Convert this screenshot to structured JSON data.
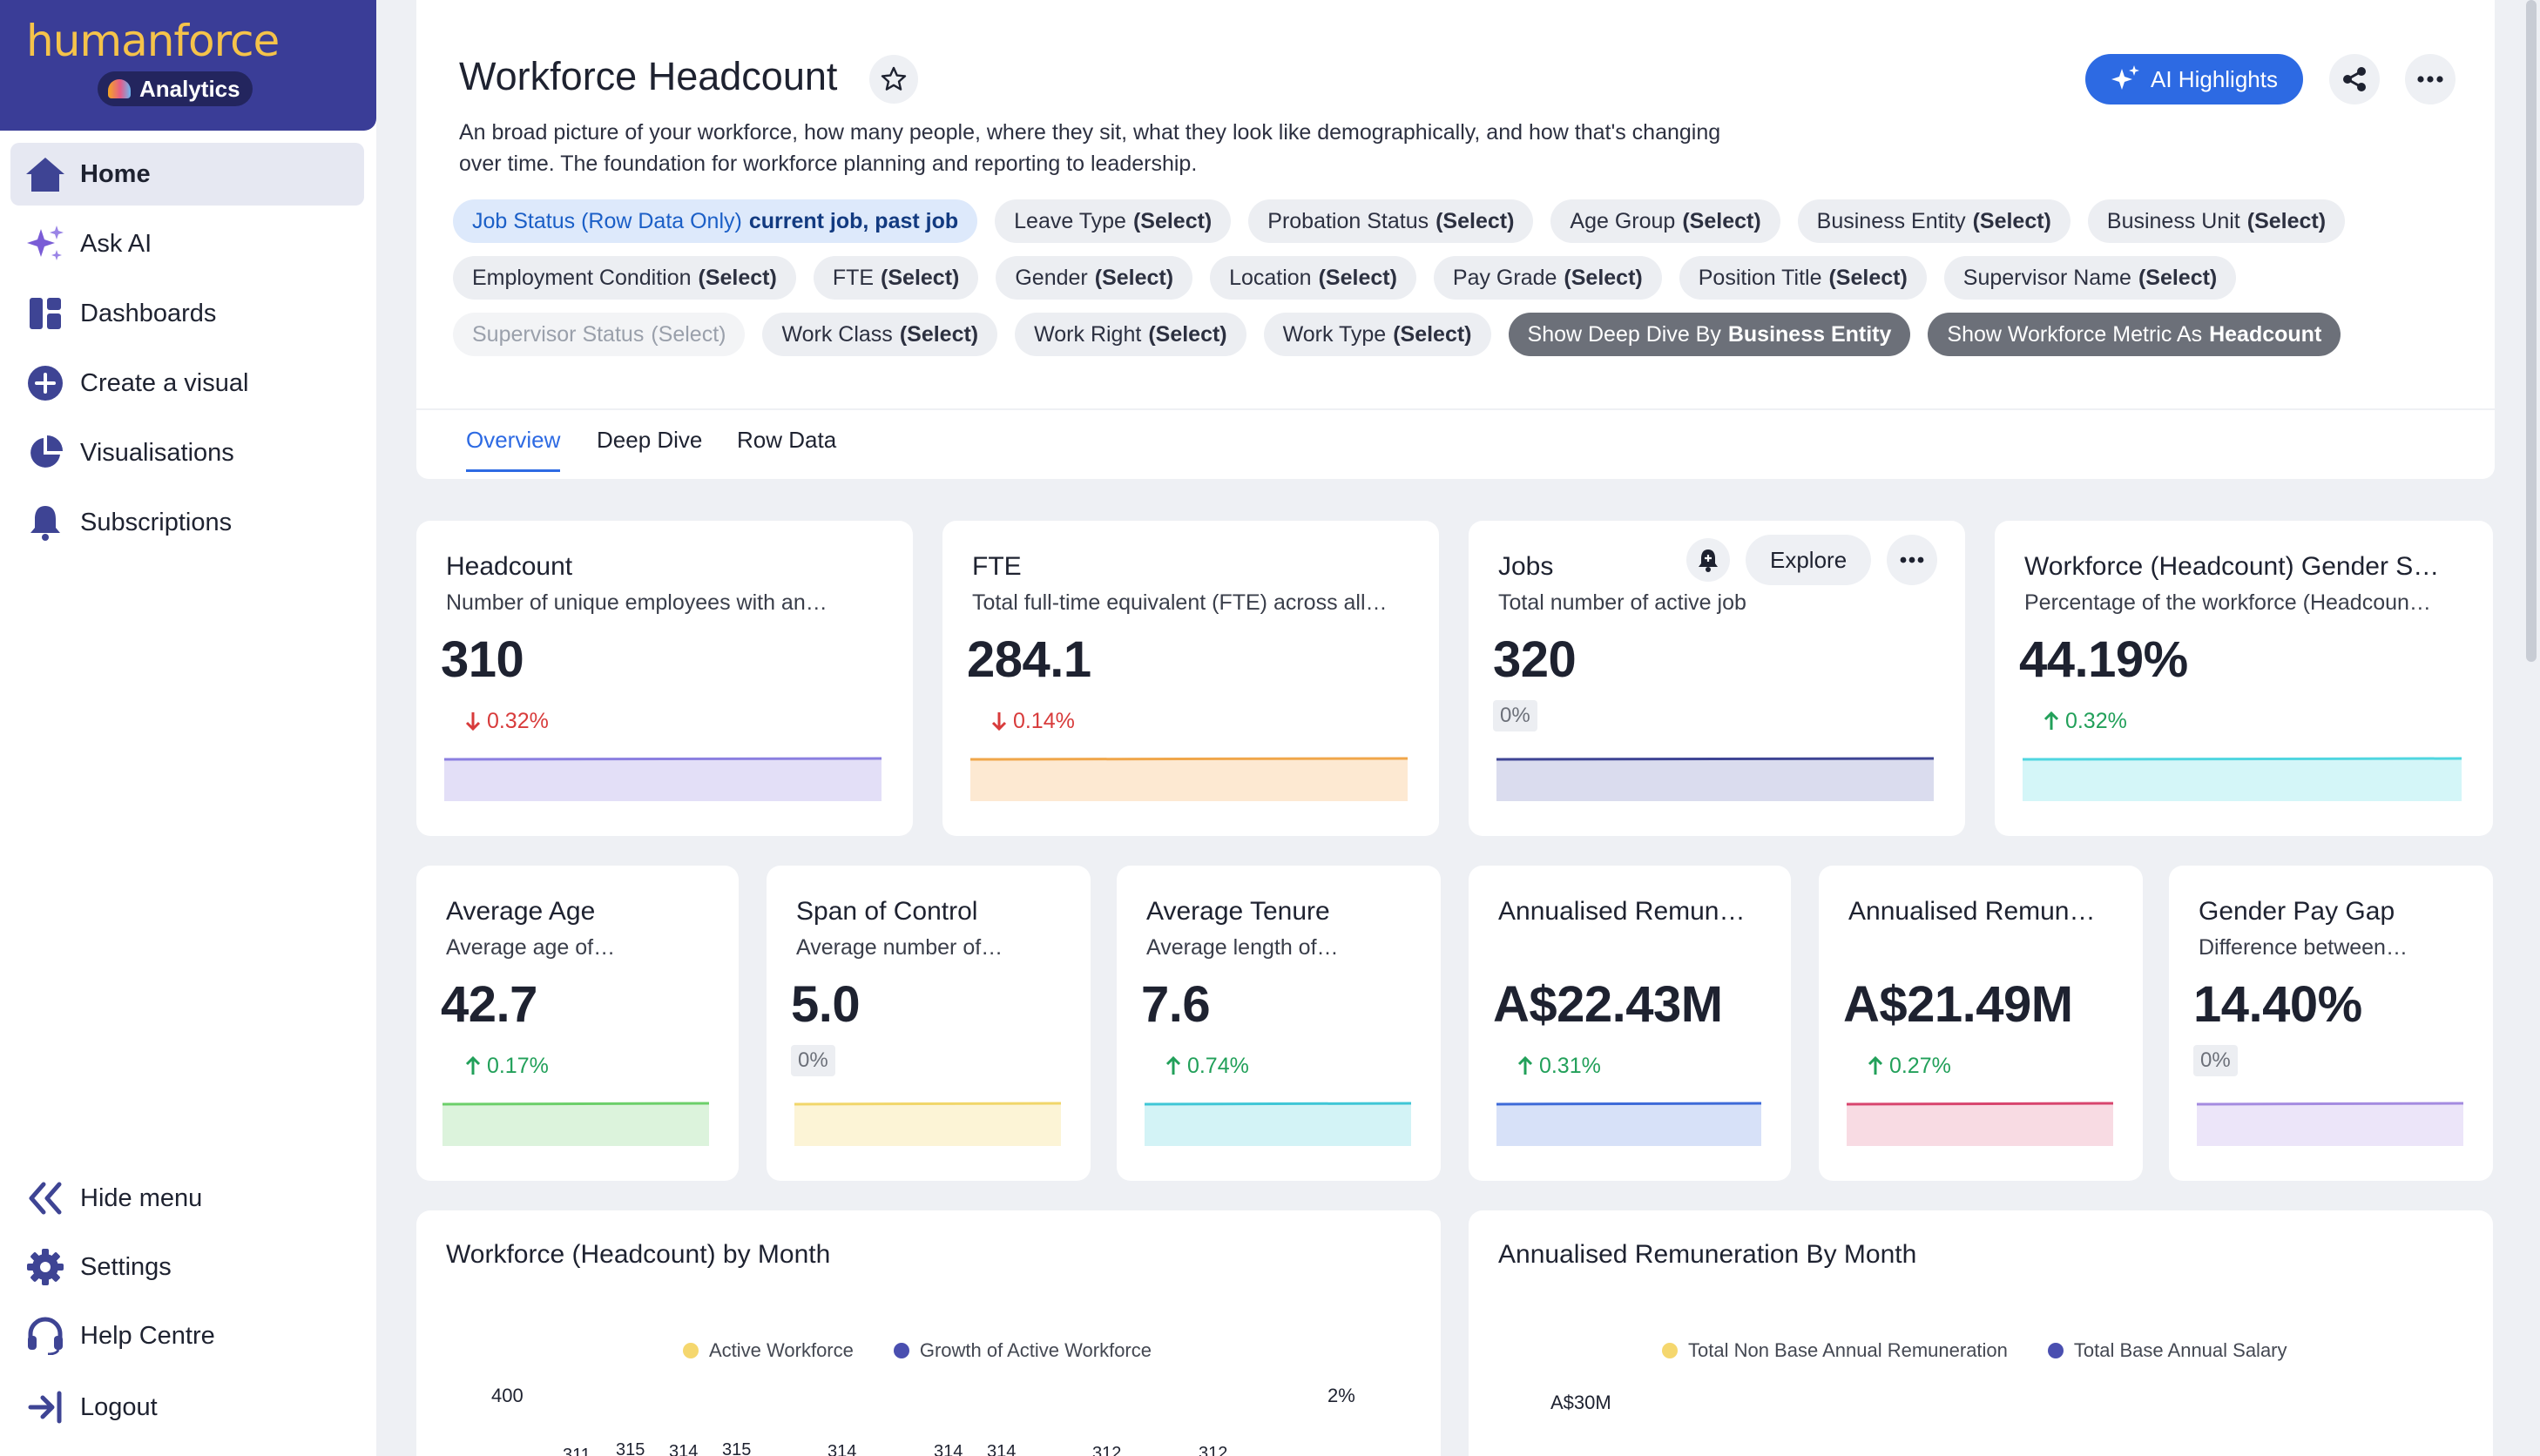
{
  "brand": {
    "name": "humanforce",
    "product": "Analytics"
  },
  "nav": {
    "home": "Home",
    "ask_ai": "Ask AI",
    "dashboards": "Dashboards",
    "create_visual": "Create a visual",
    "visualisations": "Visualisations",
    "subscriptions": "Subscriptions",
    "hide_menu": "Hide menu",
    "settings": "Settings",
    "help_centre": "Help Centre",
    "logout": "Logout"
  },
  "header": {
    "title": "Workforce Headcount",
    "ai_highlights": "AI Highlights",
    "description": "An broad picture of your workforce, how many people, where they sit, what they look like demographically, and how that's changing over time. The foundation for workforce planning and reporting to leadership."
  },
  "filters": [
    {
      "label": "Job Status (Row Data Only)",
      "value": "current job, past job"
    },
    {
      "label": "Leave Type",
      "value": "(Select)"
    },
    {
      "label": "Probation Status",
      "value": "(Select)"
    },
    {
      "label": "Age Group",
      "value": "(Select)"
    },
    {
      "label": "Business Entity",
      "value": "(Select)"
    },
    {
      "label": "Business Unit",
      "value": "(Select)"
    },
    {
      "label": "Employment Condition",
      "value": "(Select)"
    },
    {
      "label": "FTE",
      "value": "(Select)"
    },
    {
      "label": "Gender",
      "value": "(Select)"
    },
    {
      "label": "Location",
      "value": "(Select)"
    },
    {
      "label": "Pay Grade",
      "value": "(Select)"
    },
    {
      "label": "Position Title",
      "value": "(Select)"
    },
    {
      "label": "Supervisor Name",
      "value": "(Select)"
    },
    {
      "label": "Supervisor Status",
      "value": "(Select)"
    },
    {
      "label": "Work Class",
      "value": "(Select)"
    },
    {
      "label": "Work Right",
      "value": "(Select)"
    },
    {
      "label": "Work Type",
      "value": "(Select)"
    },
    {
      "label": "Show Deep Dive By",
      "value": "Business Entity"
    },
    {
      "label": "Show Workforce Metric As",
      "value": "Headcount"
    }
  ],
  "tabs": [
    "Overview",
    "Deep Dive",
    "Row Data"
  ],
  "kpis": [
    {
      "title": "Headcount",
      "desc": "Number of unique employees with an…",
      "value": "310",
      "change": "0.32%",
      "dir": "down",
      "color": "#8b7fe0",
      "fill": "#e3dff7"
    },
    {
      "title": "FTE",
      "desc": "Total full-time equivalent (FTE) across all…",
      "value": "284.1",
      "change": "0.14%",
      "dir": "down",
      "color": "#f0a64a",
      "fill": "#fde9d2"
    },
    {
      "title": "Jobs",
      "desc": "Total number of active job",
      "value": "320",
      "change": "0%",
      "dir": "flat",
      "color": "#3e4494",
      "fill": "#dadcee",
      "explore": "Explore"
    },
    {
      "title": "Workforce (Headcount) Gender S…",
      "desc": "Percentage of the workforce (Headcoun…",
      "value": "44.19%",
      "change": "0.32%",
      "dir": "up",
      "color": "#4fd6e0",
      "fill": "#d4f6f8"
    },
    {
      "title": "Average Age",
      "desc": "Average age of…",
      "value": "42.7",
      "change": "0.17%",
      "dir": "up",
      "color": "#6ccf6a",
      "fill": "#dcf3dc"
    },
    {
      "title": "Span of Control",
      "desc": "Average number of…",
      "value": "5.0",
      "change": "0%",
      "dir": "flat",
      "color": "#f1d66a",
      "fill": "#fcf4d6"
    },
    {
      "title": "Average Tenure",
      "desc": "Average length of…",
      "value": "7.6",
      "change": "0.74%",
      "dir": "up",
      "color": "#3fc6d6",
      "fill": "#d3f3f6"
    },
    {
      "title": "Annualised Remun…",
      "desc": "",
      "value": "A$22.43M",
      "change": "0.31%",
      "dir": "up",
      "color": "#3d6ad8",
      "fill": "#d7e1f8"
    },
    {
      "title": "Annualised Remun…",
      "desc": "",
      "value": "A$21.49M",
      "change": "0.27%",
      "dir": "up",
      "color": "#d8456e",
      "fill": "#f8dbe3"
    },
    {
      "title": "Gender Pay Gap",
      "desc": "Difference between…",
      "value": "14.40%",
      "change": "0%",
      "dir": "flat",
      "color": "#a48be0",
      "fill": "#ece5f9"
    }
  ],
  "charts": {
    "headcount_by_month": {
      "title": "Workforce (Headcount) by Month",
      "legend": [
        {
          "name": "Active Workforce",
          "color": "#f5d76e"
        },
        {
          "name": "Growth of Active Workforce",
          "color": "#4a4fb0"
        }
      ],
      "y_left_top": "400",
      "y_right_top": "2%",
      "bar_labels": [
        "311",
        "315",
        "314",
        "315",
        "314",
        "314",
        "314",
        "312",
        "312"
      ]
    },
    "remuneration_by_month": {
      "title": "Annualised Remuneration By Month",
      "legend": [
        {
          "name": "Total Non Base Annual Remuneration",
          "color": "#f5d76e"
        },
        {
          "name": "Total Base Annual Salary",
          "color": "#4a4fb0"
        }
      ],
      "y_left_top": "A$30M"
    }
  }
}
